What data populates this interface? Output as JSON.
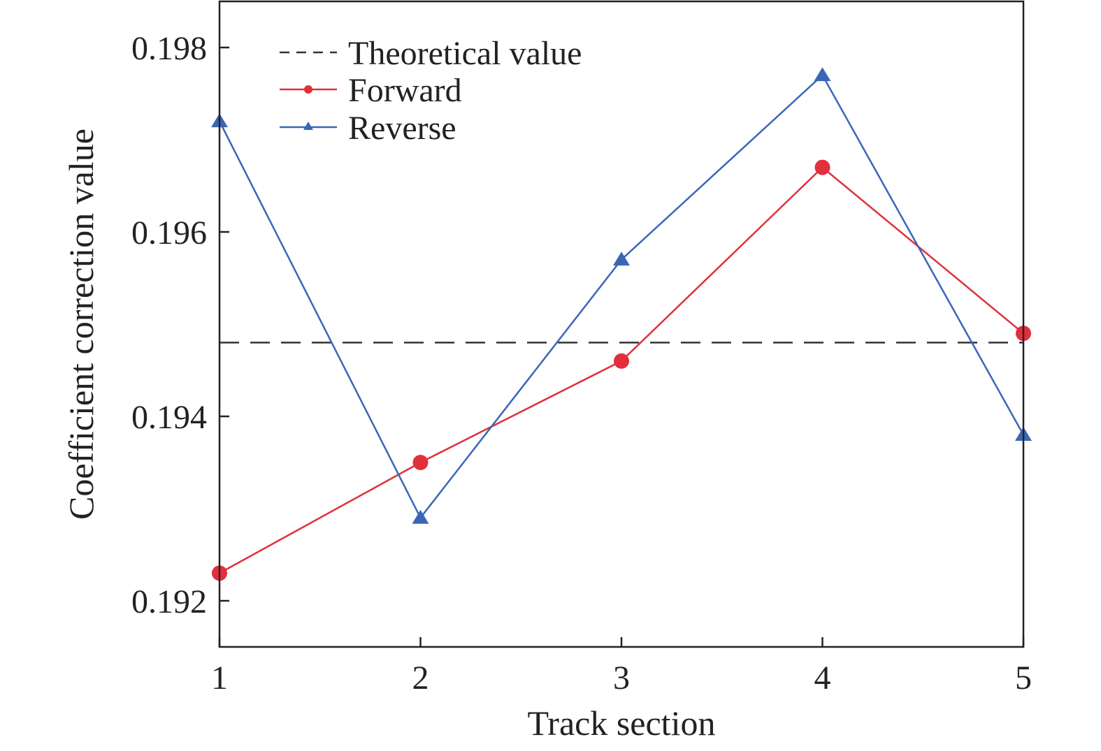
{
  "chart_data": {
    "type": "line",
    "title": "",
    "xlabel": "Track section",
    "ylabel": "Coefficient correction value",
    "x": [
      1,
      2,
      3,
      4,
      5
    ],
    "xlim": [
      1,
      5
    ],
    "ylim": [
      0.1915,
      0.1985
    ],
    "xticks": [
      "1",
      "2",
      "3",
      "4",
      "5"
    ],
    "yticks": [
      "0.192",
      "0.194",
      "0.196",
      "0.198"
    ],
    "grid": false,
    "legend_position": "top-left",
    "theoretical": {
      "name": "Theoretical value",
      "value": 0.1948,
      "color": "#333333",
      "style": "dashed"
    },
    "series": [
      {
        "name": "Forward",
        "values": [
          0.1923,
          0.1935,
          0.1946,
          0.1967,
          0.1949
        ],
        "color": "#e0303c",
        "marker": "circle"
      },
      {
        "name": "Reverse",
        "values": [
          0.1972,
          0.1929,
          0.1957,
          0.1977,
          0.1938
        ],
        "color": "#3a66b8",
        "marker": "triangle"
      }
    ]
  }
}
